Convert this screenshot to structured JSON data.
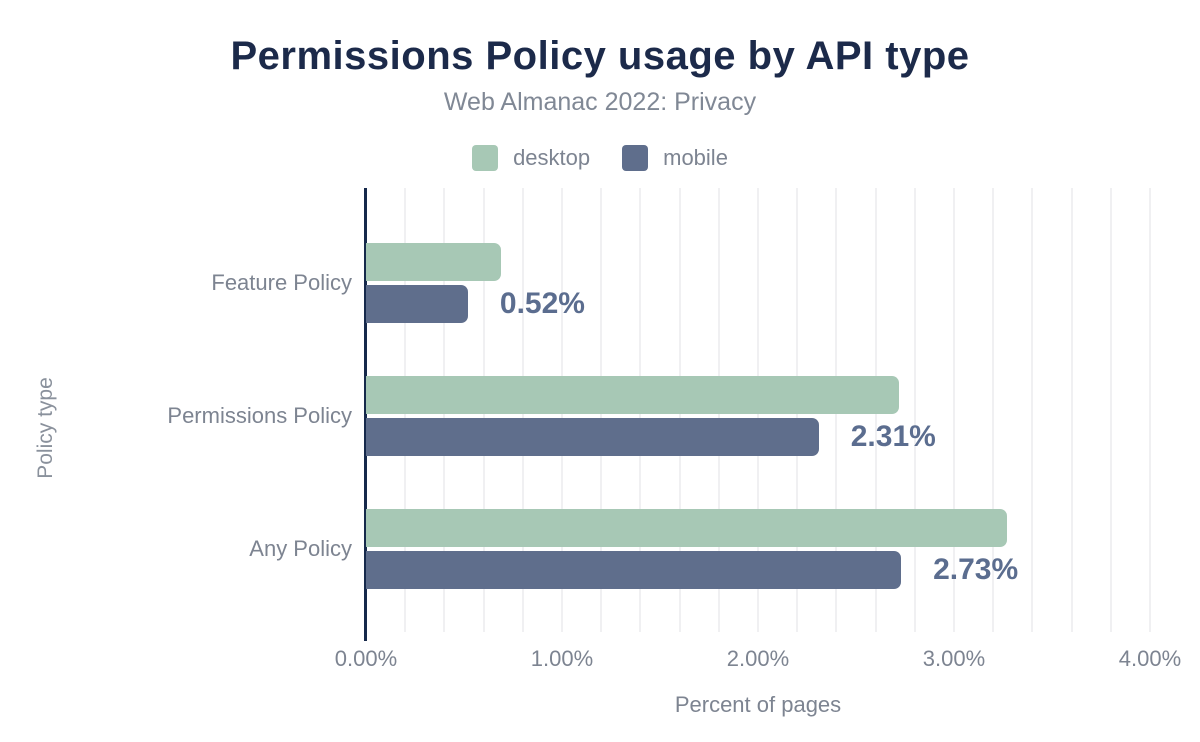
{
  "chart_data": {
    "type": "bar",
    "orientation": "horizontal",
    "title": "Permissions Policy usage by API type",
    "subtitle": "Web Almanac 2022: Privacy",
    "categories": [
      "Feature Policy",
      "Permissions Policy",
      "Any Policy"
    ],
    "series": [
      {
        "name": "desktop",
        "color": "#a7c8b5",
        "values": [
          0.69,
          2.72,
          3.27
        ]
      },
      {
        "name": "mobile",
        "color": "#5f6e8c",
        "values": [
          0.52,
          2.31,
          2.73
        ]
      }
    ],
    "value_labels": [
      "0.52%",
      "2.31%",
      "2.73%"
    ],
    "value_labels_series": "mobile",
    "xlabel": "Percent of pages",
    "ylabel": "Policy type",
    "x_ticks": [
      "0.00%",
      "1.00%",
      "2.00%",
      "3.00%",
      "4.00%"
    ],
    "x_tick_values": [
      0,
      1,
      2,
      3,
      4
    ],
    "xlim": [
      0,
      4
    ],
    "grid_step": 0.2,
    "grid": "vertical-on",
    "legend_position": "top",
    "colors": {
      "title": "#1c2a4a",
      "subtitle": "#808895",
      "muted_text": "#7d8491",
      "value_label": "#5b6d8f",
      "axis_line": "#16294b",
      "gridline": "#f0f0f2",
      "background": "#ffffff",
      "desktop_bar": "#a7c8b5",
      "mobile_bar": "#5f6e8c"
    }
  }
}
